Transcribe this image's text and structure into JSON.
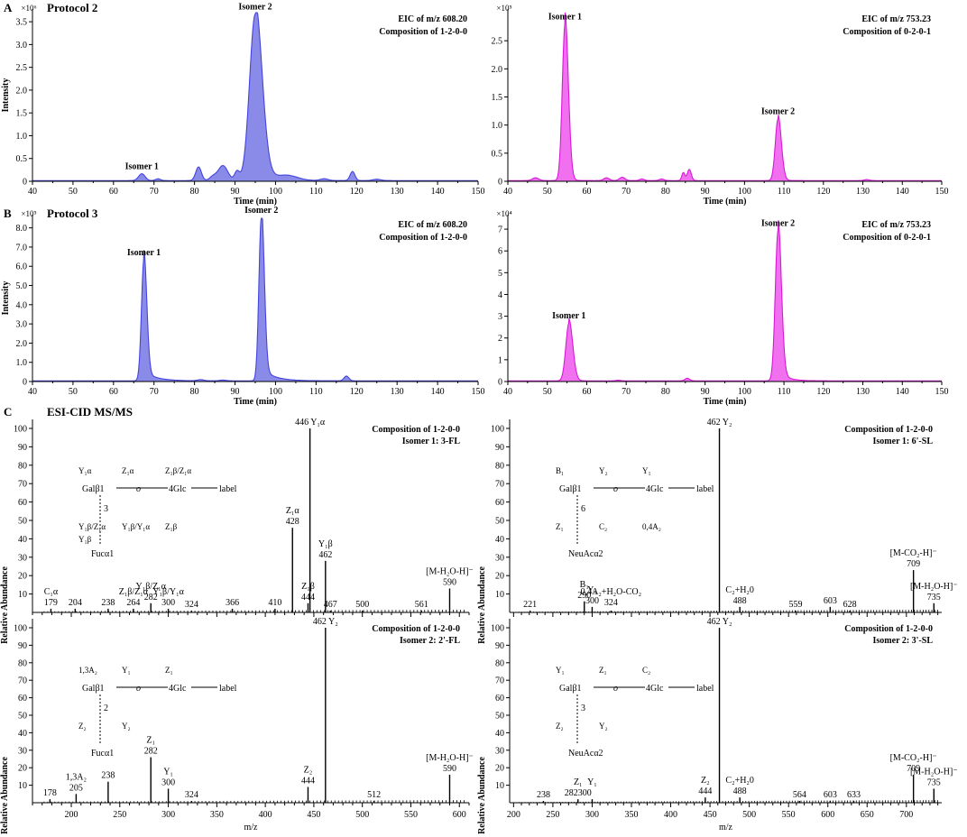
{
  "figure": {
    "panel_labels": [
      "A",
      "B",
      "C"
    ],
    "section_titles": [
      "Protocol 2",
      "Protocol 3",
      "ESI-CID MS/MS"
    ]
  },
  "chart_data": [
    {
      "id": "A-left",
      "type": "area",
      "color": "#4444dd",
      "fill": "#8a8ae8",
      "xlabel": "Time (min)",
      "ylabel": "Intensity",
      "exponent": "×10⁶",
      "xlim": [
        40,
        150
      ],
      "ylim": [
        0,
        3.7
      ],
      "xticks": [
        40,
        50,
        60,
        70,
        80,
        90,
        100,
        110,
        120,
        130,
        140,
        150
      ],
      "yticks": [
        0,
        0.5,
        1.0,
        1.5,
        2.0,
        2.5,
        3.0,
        3.5
      ],
      "ytick_labels": [
        "0",
        "0.5",
        "1.0",
        "1.5",
        "2.0",
        "2.5",
        "3.0",
        "3.5"
      ],
      "annotation_lines": [
        "EIC of m/z 608.20",
        "Composition of 1-2-0-0"
      ],
      "peaks": [
        {
          "x": 67,
          "h": 0.15,
          "w": 0.8,
          "label": "Isomer 1"
        },
        {
          "x": 71,
          "h": 0.04,
          "w": 0.6
        },
        {
          "x": 81,
          "h": 0.3,
          "w": 0.7
        },
        {
          "x": 84.5,
          "h": 0.08,
          "w": 0.8
        },
        {
          "x": 87,
          "h": 0.33,
          "w": 1.2
        },
        {
          "x": 90.5,
          "h": 0.2,
          "w": 0.6
        },
        {
          "x": 95,
          "h": 3.65,
          "w": 1.4,
          "tail": 3.0,
          "label": "Isomer 2"
        },
        {
          "x": 103,
          "h": 0.1,
          "w": 2.5
        },
        {
          "x": 112,
          "h": 0.04,
          "w": 1.0
        },
        {
          "x": 119,
          "h": 0.2,
          "w": 0.6
        },
        {
          "x": 125,
          "h": 0.03,
          "w": 1.0
        }
      ]
    },
    {
      "id": "A-right",
      "type": "area",
      "color": "#d61ad6",
      "fill": "#f070f0",
      "xlabel": "Time (min)",
      "ylabel": "",
      "exponent": "×10⁵",
      "xlim": [
        40,
        150
      ],
      "ylim": [
        0,
        3.0
      ],
      "xticks": [
        40,
        50,
        60,
        70,
        80,
        90,
        100,
        110,
        120,
        130,
        140,
        150
      ],
      "yticks": [
        0,
        0.5,
        1.0,
        1.5,
        2.0,
        2.5
      ],
      "ytick_labels": [
        "0",
        "0.5",
        "1.0",
        "1.5",
        "2.0",
        "2.5"
      ],
      "annotation_lines": [
        "EIC of m/z 753.23",
        "Composition of 0-2-0-1"
      ],
      "peaks": [
        {
          "x": 47,
          "h": 0.05,
          "w": 0.8
        },
        {
          "x": 54.5,
          "h": 2.78,
          "w": 0.7,
          "tail": 0.8,
          "label": "Isomer 1"
        },
        {
          "x": 65,
          "h": 0.05,
          "w": 0.7
        },
        {
          "x": 69,
          "h": 0.06,
          "w": 0.7
        },
        {
          "x": 74,
          "h": 0.03,
          "w": 0.6
        },
        {
          "x": 79,
          "h": 0.03,
          "w": 0.6
        },
        {
          "x": 84.5,
          "h": 0.14,
          "w": 0.4
        },
        {
          "x": 86,
          "h": 0.2,
          "w": 0.5
        },
        {
          "x": 108.5,
          "h": 1.1,
          "w": 0.7,
          "tail": 0.8,
          "label": "Isomer 2"
        },
        {
          "x": 131,
          "h": 0.02,
          "w": 0.6
        }
      ]
    },
    {
      "id": "B-left",
      "type": "area",
      "color": "#4444dd",
      "fill": "#8a8ae8",
      "xlabel": "Time (min)",
      "ylabel": "Intensity",
      "exponent": "×10⁵",
      "xlim": [
        40,
        150
      ],
      "ylim": [
        0,
        8.5
      ],
      "xticks": [
        40,
        50,
        60,
        70,
        80,
        90,
        100,
        110,
        120,
        130,
        140,
        150
      ],
      "yticks": [
        0,
        1.0,
        2.0,
        3.0,
        4.0,
        5.0,
        6.0,
        7.0,
        8.0
      ],
      "ytick_labels": [
        "0",
        "1.0",
        "2.0",
        "3.0",
        "4.0",
        "5.0",
        "6.0",
        "7.0",
        "8.0"
      ],
      "annotation_lines": [
        "EIC of m/z 608.20",
        "Composition of 1-2-0-0"
      ],
      "peaks": [
        {
          "x": 67.5,
          "h": 6.3,
          "w": 0.6,
          "tail": 3.0,
          "label": "Isomer 1"
        },
        {
          "x": 96.5,
          "h": 8.5,
          "w": 0.6,
          "tail": 3.0,
          "label": "Isomer 2"
        },
        {
          "x": 81.5,
          "h": 0.06,
          "w": 0.8
        },
        {
          "x": 87,
          "h": 0.04,
          "w": 0.8
        },
        {
          "x": 117.5,
          "h": 0.25,
          "w": 0.6
        }
      ]
    },
    {
      "id": "B-right",
      "type": "area",
      "color": "#d61ad6",
      "fill": "#f070f0",
      "xlabel": "Time (min)",
      "ylabel": "",
      "exponent": "×10⁴",
      "xlim": [
        40,
        150
      ],
      "ylim": [
        0,
        7.5
      ],
      "xticks": [
        40,
        50,
        60,
        70,
        80,
        90,
        100,
        110,
        120,
        130,
        140,
        150
      ],
      "yticks": [
        0,
        1,
        2,
        3,
        4,
        5,
        6,
        7
      ],
      "ytick_labels": [
        "0",
        "1",
        "2",
        "3",
        "4",
        "5",
        "6",
        "7"
      ],
      "annotation_lines": [
        "EIC of m/z 753.23",
        "Composition of 0-2-0-1"
      ],
      "peaks": [
        {
          "x": 55.5,
          "h": 2.65,
          "w": 0.8,
          "tail": 0.8,
          "label": "Isomer 1"
        },
        {
          "x": 108.5,
          "h": 6.9,
          "w": 0.7,
          "tail": 2.0,
          "label": "Isomer 2"
        },
        {
          "x": 85.5,
          "h": 0.12,
          "w": 0.6
        },
        {
          "x": 68,
          "h": 0.03,
          "w": 0.6
        }
      ]
    },
    {
      "id": "C-top-left",
      "type": "bar",
      "xlim": [
        160,
        610
      ],
      "ylim": [
        0,
        100
      ],
      "xlabel": "",
      "ylabel": "Relative Abundance",
      "yticks": [
        10,
        20,
        30,
        40,
        50,
        60,
        70,
        80,
        90,
        100
      ],
      "annotation_lines": [
        "Composition of 1-2-0-0",
        "Isomer 1: 3-FL"
      ],
      "peaks": [
        {
          "mz": 179,
          "h": 2,
          "label": "C₁α|179"
        },
        {
          "mz": 204,
          "h": 2,
          "label": "204"
        },
        {
          "mz": 238,
          "h": 2,
          "label": "238"
        },
        {
          "mz": 264,
          "h": 2,
          "label": "Z₁β/Z₁α|264"
        },
        {
          "mz": 282,
          "h": 5,
          "label": "Y₁β/Z₁α|282"
        },
        {
          "mz": 300,
          "h": 2,
          "label": "Y₁β/Y₁α|300"
        },
        {
          "mz": 324,
          "h": 1,
          "label": "324"
        },
        {
          "mz": 366,
          "h": 2,
          "label": "366"
        },
        {
          "mz": 410,
          "h": 2,
          "label": "410"
        },
        {
          "mz": 428,
          "h": 46,
          "label": "Z₁α|428"
        },
        {
          "mz": 444,
          "h": 5,
          "label": "Z₁β|444"
        },
        {
          "mz": 446,
          "h": 100,
          "label": "446 Y₁α"
        },
        {
          "mz": 462,
          "h": 28,
          "label": "Y₁β|462"
        },
        {
          "mz": 467,
          "h": 1,
          "label": "467"
        },
        {
          "mz": 500,
          "h": 1,
          "label": "500"
        },
        {
          "mz": 561,
          "h": 1,
          "label": "561"
        },
        {
          "mz": 590,
          "h": 13,
          "label": "[M-H₂O-H]⁻|590"
        }
      ],
      "structure": {
        "residues": [
          "Galβ1",
          "4Glc",
          "label",
          "Fucα1"
        ],
        "fragments": [
          "Y₁α",
          "Z₁α",
          "Z₁β/Z₁α",
          "Y₁β/Z₁α",
          "Y₁β/Y₁α",
          "Z₁β",
          "Y₁β"
        ],
        "linkage": "3",
        "bridge": "o"
      }
    },
    {
      "id": "C-bottom-left",
      "type": "bar",
      "xlim": [
        160,
        610
      ],
      "ylim": [
        0,
        100
      ],
      "xlabel": "m/z",
      "ylabel": "Relative Abundance",
      "xticks": [
        200,
        250,
        300,
        350,
        400,
        450,
        500,
        550,
        600
      ],
      "yticks": [
        10,
        20,
        30,
        40,
        50,
        60,
        70,
        80,
        90,
        100
      ],
      "annotation_lines": [
        "Composition of 1-2-0-0",
        "Isomer 2: 2'-FL"
      ],
      "peaks": [
        {
          "mz": 178,
          "h": 2,
          "label": "178"
        },
        {
          "mz": 205,
          "h": 5,
          "label": "1,3A₂|205"
        },
        {
          "mz": 238,
          "h": 12,
          "label": "238"
        },
        {
          "mz": 282,
          "h": 26,
          "label": "Z₁|282"
        },
        {
          "mz": 300,
          "h": 8,
          "label": "Y₁|300"
        },
        {
          "mz": 324,
          "h": 1,
          "label": "324"
        },
        {
          "mz": 444,
          "h": 9,
          "label": "Z₂|444"
        },
        {
          "mz": 462,
          "h": 100,
          "label": "462 Y₂"
        },
        {
          "mz": 512,
          "h": 1,
          "label": "512"
        },
        {
          "mz": 590,
          "h": 16,
          "label": "[M-H₂O-H]⁻|590"
        }
      ],
      "structure": {
        "residues": [
          "Galβ1",
          "4Glc",
          "label",
          "Fucα1"
        ],
        "fragments": [
          "1,3A₂",
          "Y₁",
          "Z₁",
          "Z₂",
          "Y₂"
        ],
        "linkage": "2",
        "bridge": "o"
      }
    },
    {
      "id": "C-top-right",
      "type": "bar",
      "xlim": [
        195,
        745
      ],
      "ylim": [
        0,
        100
      ],
      "xlabel": "",
      "ylabel": "Relative Abundance",
      "yticks": [
        10,
        20,
        30,
        40,
        50,
        60,
        70,
        80,
        90,
        100
      ],
      "annotation_lines": [
        "Composition of 1-2-0-0",
        "Isomer 1: 6'-SL"
      ],
      "peaks": [
        {
          "mz": 221,
          "h": 1,
          "label": "221"
        },
        {
          "mz": 290,
          "h": 6,
          "label": "B₁|290"
        },
        {
          "mz": 300,
          "h": 3,
          "label": "Y₁|300"
        },
        {
          "mz": 324,
          "h": 1,
          "label": "0,4A₂+H₂O-CO₂|324"
        },
        {
          "mz": 462,
          "h": 100,
          "label": "462 Y₂"
        },
        {
          "mz": 488,
          "h": 3,
          "label": "C₂+H₂0|488"
        },
        {
          "mz": 559,
          "h": 1,
          "label": "559"
        },
        {
          "mz": 603,
          "h": 3,
          "label": "603"
        },
        {
          "mz": 628,
          "h": 1,
          "label": "628"
        },
        {
          "mz": 709,
          "h": 23,
          "label": "[M-CO₂-H]⁻|709"
        },
        {
          "mz": 735,
          "h": 5,
          "label": "[M-H₂O-H]⁻|735"
        }
      ],
      "structure": {
        "residues": [
          "NeuAcα2",
          "Galβ1",
          "4Glc",
          "label"
        ],
        "fragments": [
          "B₁",
          "Y₂",
          "Y₁",
          "Z₁",
          "C₂",
          "0,4A₂"
        ],
        "linkage": "6",
        "bridge": "o"
      }
    },
    {
      "id": "C-bottom-right",
      "type": "bar",
      "xlim": [
        195,
        745
      ],
      "ylim": [
        0,
        100
      ],
      "xlabel": "m/z",
      "ylabel": "Relative Abundance",
      "xticks": [
        200,
        250,
        300,
        350,
        400,
        450,
        500,
        550,
        600,
        650,
        700
      ],
      "yticks": [
        10,
        20,
        30,
        40,
        50,
        60,
        70,
        80,
        90,
        100
      ],
      "annotation_lines": [
        "Composition of 1-2-0-0",
        "Isomer 2: 3'-SL"
      ],
      "peaks": [
        {
          "mz": 238,
          "h": 1,
          "label": "238"
        },
        {
          "mz": 282,
          "h": 2,
          "label": "Z₁|282300"
        },
        {
          "mz": 300,
          "h": 2,
          "label": "Y₁|"
        },
        {
          "mz": 444,
          "h": 3,
          "label": "Z₂|444"
        },
        {
          "mz": 462,
          "h": 100,
          "label": "462 Y₂"
        },
        {
          "mz": 488,
          "h": 3,
          "label": "C₂+H₂0|488"
        },
        {
          "mz": 564,
          "h": 1,
          "label": "564"
        },
        {
          "mz": 603,
          "h": 1,
          "label": "603"
        },
        {
          "mz": 633,
          "h": 1,
          "label": "633"
        },
        {
          "mz": 709,
          "h": 16,
          "label": "[M-CO₂-H]⁻|709"
        },
        {
          "mz": 735,
          "h": 8,
          "label": "[M-H₂O-H]⁻|735"
        }
      ],
      "structure": {
        "residues": [
          "Galβ1",
          "4Glc",
          "label",
          "NeuAcα2"
        ],
        "fragments": [
          "Y₁",
          "Z₁",
          "C₂",
          "Z₂",
          "Y₂"
        ],
        "linkage": "3",
        "bridge": "o"
      }
    }
  ]
}
